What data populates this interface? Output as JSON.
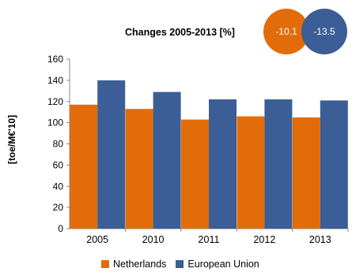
{
  "changes": {
    "title": "Changes  2005-2013 [%]",
    "netherlands": "-10.1",
    "eu": "-13.5"
  },
  "colors": {
    "netherlands": "#E36C0A",
    "eu": "#3B5E96"
  },
  "chart_data": {
    "type": "bar",
    "ylabel": "[toe/M€'10]",
    "xlabel": "",
    "ylim": [
      0,
      160
    ],
    "yticks": [
      0,
      20,
      40,
      60,
      80,
      100,
      120,
      140,
      160
    ],
    "grid": false,
    "legend_position": "bottom",
    "categories": [
      "2005",
      "2010",
      "2011",
      "2012",
      "2013"
    ],
    "series": [
      {
        "name": "Netherlands",
        "color": "#E36C0A",
        "values": [
          117,
          113,
          103,
          106,
          105
        ]
      },
      {
        "name": "European Union",
        "color": "#3B5E96",
        "values": [
          140,
          129,
          122,
          122,
          121
        ]
      }
    ]
  }
}
